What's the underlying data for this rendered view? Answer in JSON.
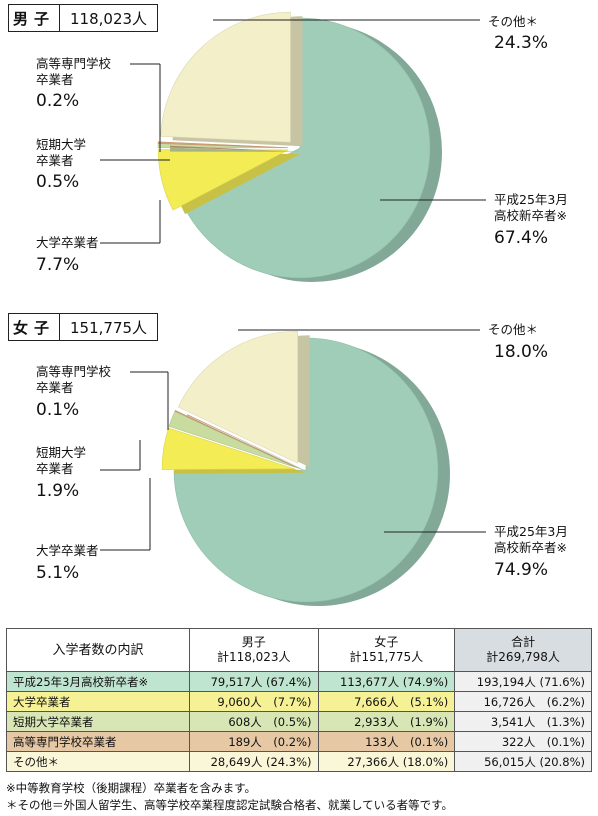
{
  "male": {
    "gender": "男子",
    "total": "118,023人",
    "labels": {
      "other": "その他＊",
      "other_pct": "24.3%",
      "kosen": "高等専門学校\n卒業者",
      "kosen_pct": "0.2%",
      "tanki": "短期大学\n卒業者",
      "tanki_pct": "0.5%",
      "daigaku": "大学卒業者",
      "daigaku_pct": "7.7%",
      "hs": "平成25年3月\n高校新卒者※",
      "hs_pct": "67.4%"
    }
  },
  "female": {
    "gender": "女子",
    "total": "151,775人",
    "labels": {
      "other": "その他＊",
      "other_pct": "18.0%",
      "kosen": "高等専門学校\n卒業者",
      "kosen_pct": "0.1%",
      "tanki": "短期大学\n卒業者",
      "tanki_pct": "1.9%",
      "daigaku": "大学卒業者",
      "daigaku_pct": "5.1%",
      "hs": "平成25年3月\n高校新卒者※",
      "hs_pct": "74.9%"
    }
  },
  "colors": {
    "hs": "#9fcdb8",
    "daigaku": "#f3ec55",
    "tanki": "#c8dca0",
    "kosen": "#d9a679",
    "other": "#f3efc8"
  },
  "chart_data": [
    {
      "type": "pie",
      "title": "男子 118,023人",
      "categories": [
        "平成25年3月高校新卒者※",
        "大学卒業者",
        "短期大学卒業者",
        "高等専門学校卒業者",
        "その他＊"
      ],
      "values": [
        67.4,
        7.7,
        0.5,
        0.2,
        24.3
      ],
      "counts": [
        79517,
        9060,
        608,
        189,
        28649
      ]
    },
    {
      "type": "pie",
      "title": "女子 151,775人",
      "categories": [
        "平成25年3月高校新卒者※",
        "大学卒業者",
        "短期大学卒業者",
        "高等専門学校卒業者",
        "その他＊"
      ],
      "values": [
        74.9,
        5.1,
        1.9,
        0.1,
        18.0
      ],
      "counts": [
        113677,
        7666,
        2933,
        133,
        27366
      ]
    }
  ],
  "table": {
    "header": {
      "col0": "入学者数の内訳",
      "male": "男子\n計118,023人",
      "female": "女子\n計151,775人",
      "total": "合計\n計269,798人"
    },
    "rows": [
      {
        "label": "平成25年3月高校新卒者※",
        "male": "79,517人 (67.4%)",
        "female": "113,677人 (74.9%)",
        "total": "193,194人 (71.6%)",
        "color": "#bfe4d0"
      },
      {
        "label": "大学卒業者",
        "male": "9,060人　(7.7%)",
        "female": "7,666人　(5.1%)",
        "total": "16,726人　(6.2%)",
        "color": "#f7f195"
      },
      {
        "label": "短期大学卒業者",
        "male": "608人　(0.5%)",
        "female": "2,933人　(1.9%)",
        "total": "3,541人　(1.3%)",
        "color": "#d7e6b4"
      },
      {
        "label": "高等専門学校卒業者",
        "male": "189人　(0.2%)",
        "female": "133人　(0.1%)",
        "total": "322人　(0.1%)",
        "color": "#e7c8a5"
      },
      {
        "label": "その他＊",
        "male": "28,649人 (24.3%)",
        "female": "27,366人 (18.0%)",
        "total": "56,015人 (20.8%)",
        "color": "#faf7d9"
      }
    ]
  },
  "notes": [
    "※中等教育学校（後期課程）卒業者を含みます。",
    "＊その他＝外国人留学生、高等学校卒業程度認定試験合格者、就業している者等です。"
  ]
}
